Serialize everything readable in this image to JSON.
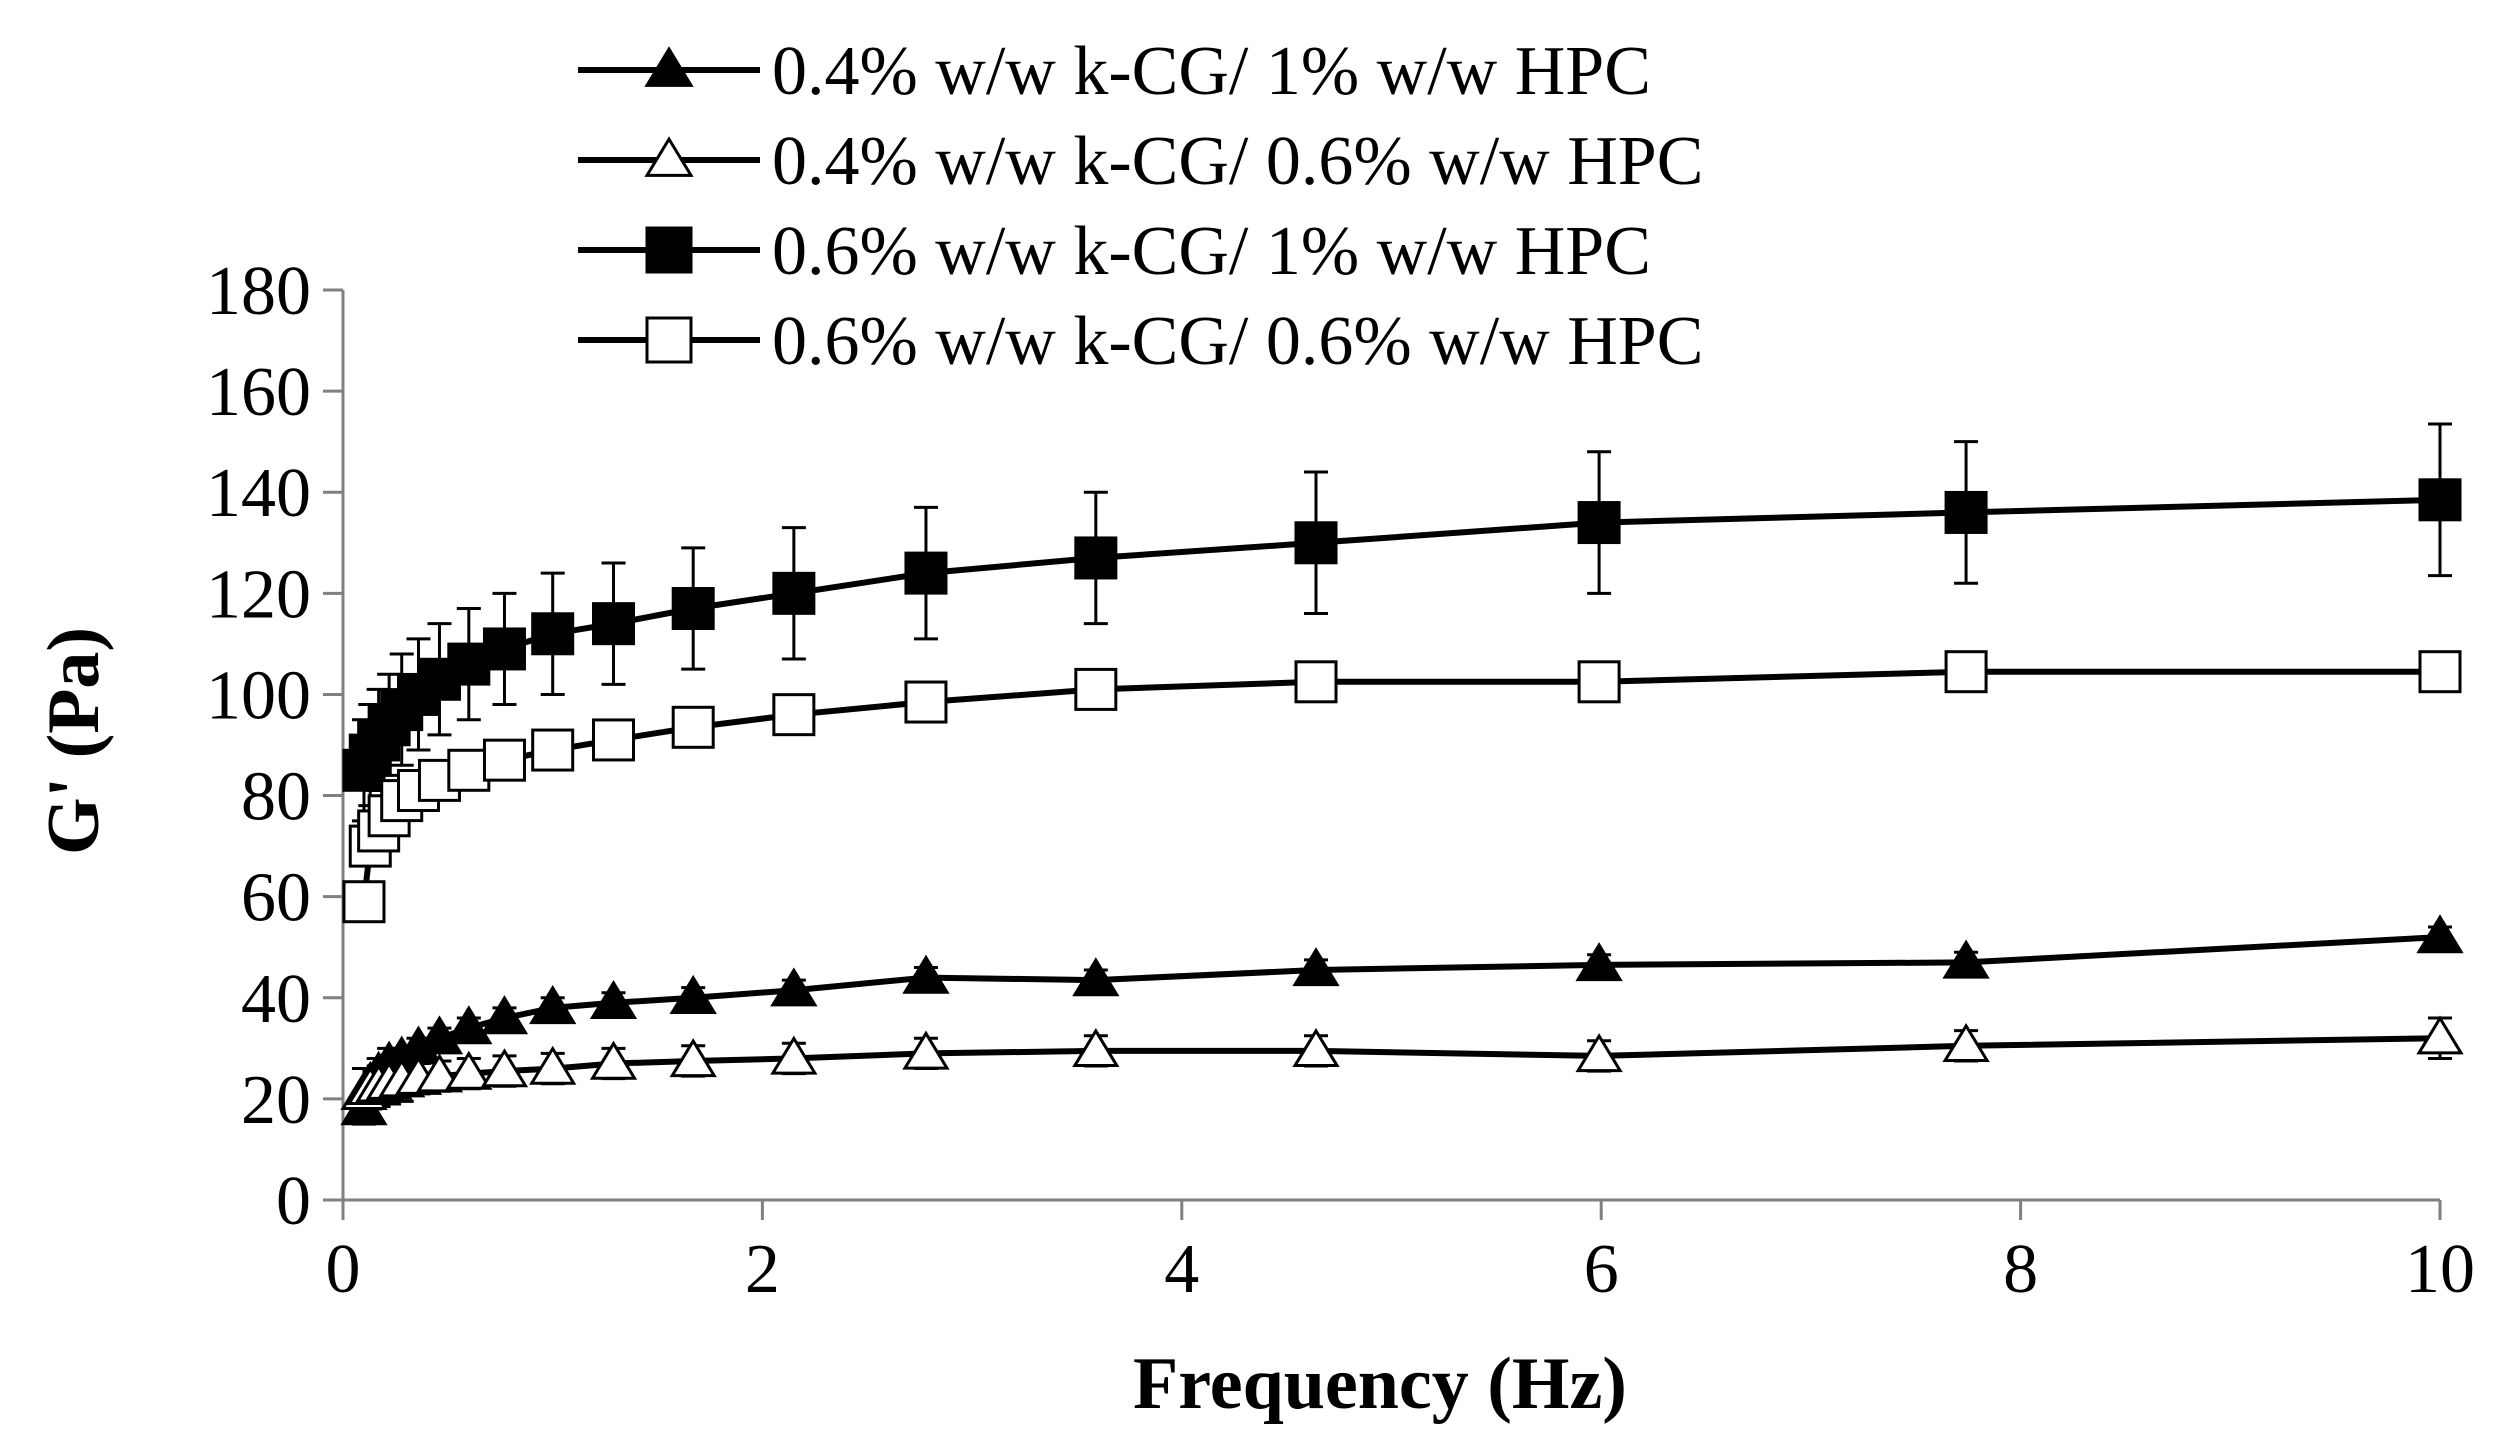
{
  "chart_data": {
    "type": "line",
    "title": "",
    "xlabel": "Frequency (Hz)",
    "ylabel": "G' (Pa)",
    "xlim": [
      0,
      10
    ],
    "ylim": [
      0,
      180
    ],
    "xticks": [
      0,
      2,
      4,
      6,
      8,
      10
    ],
    "xtick_labels": [
      "0",
      "2",
      "4",
      "6",
      "8",
      "10"
    ],
    "yticks": [
      0,
      20,
      40,
      60,
      80,
      100,
      120,
      140,
      160,
      180
    ],
    "ytick_labels": [
      "0",
      "20",
      "40",
      "60",
      "80",
      "100",
      "120",
      "140",
      "160",
      "180"
    ],
    "grid": false,
    "legend_position": "top",
    "x": [
      0.1,
      0.13,
      0.17,
      0.22,
      0.28,
      0.36,
      0.46,
      0.6,
      0.77,
      1.0,
      1.29,
      1.67,
      2.15,
      2.78,
      3.59,
      4.64,
      5.99,
      7.74,
      10.0
    ],
    "series": [
      {
        "name": "0.4% w/w k-CG/ 1% w/w HPC",
        "marker": "triangle-filled",
        "values": [
          18,
          23,
          25,
          27,
          28,
          30,
          32,
          34,
          36,
          38,
          39,
          40,
          41.5,
          44,
          43.5,
          45.5,
          46.5,
          47,
          52
        ],
        "errors": [
          3,
          3,
          3,
          3,
          2,
          2,
          2,
          2,
          2,
          2,
          2,
          2,
          2,
          2,
          2,
          2,
          2,
          2,
          2
        ]
      },
      {
        "name": "0.4% w/w k-CG/ 0.6% w/w HPC",
        "marker": "triangle-open",
        "values": [
          21,
          22,
          22.5,
          23,
          23.5,
          24,
          24.5,
          25,
          25.5,
          26,
          27,
          27.5,
          28,
          29,
          29.5,
          29.5,
          28.5,
          30.5,
          32
        ],
        "errors": [
          5,
          4,
          4,
          4,
          4,
          3,
          3,
          3,
          3,
          3,
          3,
          3,
          3,
          3,
          3,
          3,
          3,
          3,
          4
        ]
      },
      {
        "name": "0.6% w/w k-CG/ 1% w/w HPC",
        "marker": "square-filled",
        "values": [
          85,
          88,
          91,
          94,
          97,
          100,
          103,
          106,
          109,
          112,
          114,
          117,
          120,
          124,
          127,
          130,
          134,
          136,
          138.5
        ],
        "errors": [
          10,
          10,
          10,
          10,
          11,
          11,
          11,
          11,
          11,
          12,
          12,
          12,
          13,
          13,
          13,
          14,
          14,
          14,
          15
        ]
      },
      {
        "name": "0.6% w/w k-CG/ 0.6% w/w HPC",
        "marker": "square-open",
        "values": [
          59,
          70,
          73,
          76,
          79,
          81,
          83,
          85,
          87,
          89,
          91,
          93.5,
          96,
          98.5,
          101,
          102.5,
          102.5,
          104.5,
          104.5
        ],
        "errors": [
          2,
          2,
          2,
          2,
          2,
          2,
          2,
          2,
          2,
          2,
          2,
          2,
          2,
          2,
          2,
          2,
          2,
          2,
          2
        ]
      }
    ]
  },
  "colors": {
    "line": "#000000",
    "marker_fill": "#000000",
    "marker_open_fill": "#ffffff",
    "axis": "#808080"
  }
}
